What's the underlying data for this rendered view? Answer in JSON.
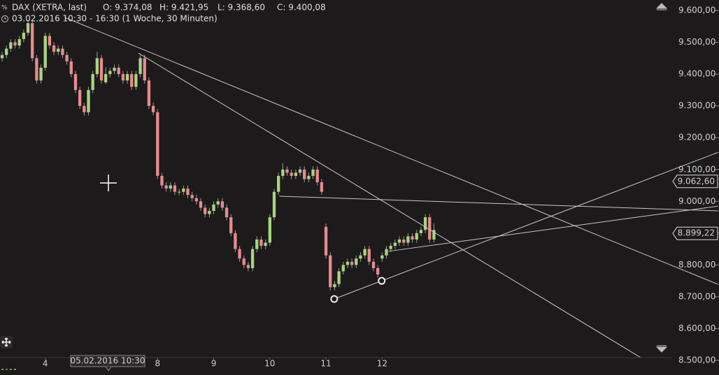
{
  "chart_data": {
    "type": "candlestick",
    "header": {
      "symbol": "DAX (XETRA, last)",
      "open": "O: 9.374,08",
      "high": "H: 9.421,95",
      "low": "L: 9.368,60",
      "close": "C: 9.400,08",
      "range": "03.02.2016 10:30 - 16:30 (1 Woche, 30 Minuten)"
    },
    "cursor_label": "05.02.2016 10:30",
    "up_color": "#a8d47e",
    "down_color": "#e98a8e",
    "line_color": "#c8c8c8",
    "xlim": [
      0,
      155
    ],
    "xticks": [
      {
        "value": 10,
        "label": "4"
      },
      {
        "value": 36,
        "label": "8"
      },
      {
        "value": 49,
        "label": "9"
      },
      {
        "value": 62,
        "label": "10"
      },
      {
        "value": 75,
        "label": "11"
      },
      {
        "value": 88,
        "label": "12"
      }
    ],
    "ylim": [
      8490,
      9624
    ],
    "yticks": [
      {
        "value": 9600,
        "label": "9.600,00"
      },
      {
        "value": 9500,
        "label": "9.500,00"
      },
      {
        "value": 9400,
        "label": "9.400,00"
      },
      {
        "value": 9300,
        "label": "9.300,00"
      },
      {
        "value": 9200,
        "label": "9.200,00"
      },
      {
        "value": 9100,
        "label": "9.100,00"
      },
      {
        "value": 9000,
        "label": "9.000,00"
      },
      {
        "value": 8900,
        "label": "8.900,00"
      },
      {
        "value": 8800,
        "label": "8.800,00"
      },
      {
        "value": 8700,
        "label": "8.700,00"
      },
      {
        "value": 8600,
        "label": "8.600,00"
      },
      {
        "value": 8500,
        "label": "8.500,00"
      }
    ],
    "price_markers": {
      "values": [
        9062.6,
        8899.22
      ],
      "value_labels": [
        "9.062,60",
        "8.899,22"
      ]
    },
    "ohlc": [
      [
        9450,
        9470,
        9440,
        9460
      ],
      [
        9460,
        9490,
        9450,
        9480
      ],
      [
        9480,
        9510,
        9470,
        9500
      ],
      [
        9500,
        9510,
        9480,
        9490
      ],
      [
        9490,
        9520,
        9480,
        9510
      ],
      [
        9510,
        9540,
        9500,
        9530
      ],
      [
        9530,
        9570,
        9520,
        9560
      ],
      [
        9560,
        9570,
        9440,
        9450
      ],
      [
        9450,
        9460,
        9370,
        9380
      ],
      [
        9380,
        9430,
        9370,
        9420
      ],
      [
        9420,
        9530,
        9410,
        9520
      ],
      [
        9520,
        9530,
        9480,
        9490
      ],
      [
        9490,
        9500,
        9460,
        9470
      ],
      [
        9470,
        9490,
        9460,
        9480
      ],
      [
        9480,
        9490,
        9450,
        9460
      ],
      [
        9460,
        9470,
        9430,
        9440
      ],
      [
        9440,
        9450,
        9390,
        9400
      ],
      [
        9400,
        9410,
        9340,
        9350
      ],
      [
        9350,
        9360,
        9290,
        9300
      ],
      [
        9300,
        9310,
        9270,
        9280
      ],
      [
        9280,
        9360,
        9270,
        9350
      ],
      [
        9350,
        9410,
        9340,
        9400
      ],
      [
        9400,
        9470,
        9390,
        9450
      ],
      [
        9450,
        9460,
        9370,
        9380
      ],
      [
        9374.08,
        9421.95,
        9368.6,
        9400.08
      ],
      [
        9400,
        9420,
        9390,
        9410
      ],
      [
        9410,
        9430,
        9400,
        9420
      ],
      [
        9420,
        9430,
        9390,
        9400
      ],
      [
        9400,
        9410,
        9370,
        9380
      ],
      [
        9380,
        9410,
        9370,
        9400
      ],
      [
        9400,
        9410,
        9350,
        9360
      ],
      [
        9360,
        9410,
        9350,
        9400
      ],
      [
        9400,
        9460,
        9390,
        9450
      ],
      [
        9450,
        9460,
        9370,
        9380
      ],
      [
        9380,
        9390,
        9290,
        9300
      ],
      [
        9300,
        9310,
        9270,
        9280
      ],
      [
        9280,
        9290,
        9070,
        9080
      ],
      [
        9080,
        9090,
        9040,
        9050
      ],
      [
        9050,
        9060,
        9030,
        9040
      ],
      [
        9040,
        9060,
        9030,
        9050
      ],
      [
        9050,
        9060,
        9020,
        9030
      ],
      [
        9030,
        9040,
        9020,
        9030
      ],
      [
        9030,
        9050,
        9020,
        9040
      ],
      [
        9040,
        9050,
        9010,
        9020
      ],
      [
        9020,
        9030,
        9000,
        9010
      ],
      [
        9010,
        9020,
        8990,
        9000
      ],
      [
        9000,
        9010,
        8970,
        8980
      ],
      [
        8980,
        8990,
        8950,
        8960
      ],
      [
        8960,
        8980,
        8950,
        8970
      ],
      [
        8970,
        9000,
        8960,
        8990
      ],
      [
        8990,
        9010,
        8980,
        9000
      ],
      [
        9000,
        9010,
        8970,
        8980
      ],
      [
        8980,
        8990,
        8940,
        8950
      ],
      [
        8950,
        8960,
        8890,
        8900
      ],
      [
        8900,
        8910,
        8840,
        8850
      ],
      [
        8850,
        8860,
        8810,
        8820
      ],
      [
        8820,
        8830,
        8790,
        8800
      ],
      [
        8800,
        8810,
        8780,
        8790
      ],
      [
        8790,
        8860,
        8780,
        8850
      ],
      [
        8850,
        8890,
        8840,
        8880
      ],
      [
        8880,
        8890,
        8850,
        8860
      ],
      [
        8860,
        8880,
        8850,
        8870
      ],
      [
        8870,
        8960,
        8860,
        8950
      ],
      [
        8950,
        9040,
        8940,
        9030
      ],
      [
        9030,
        9090,
        9020,
        9080
      ],
      [
        9080,
        9120,
        9070,
        9100
      ],
      [
        9100,
        9110,
        9080,
        9090
      ],
      [
        9090,
        9100,
        9070,
        9080
      ],
      [
        9080,
        9100,
        9070,
        9090
      ],
      [
        9090,
        9110,
        9080,
        9100
      ],
      [
        9100,
        9110,
        9060,
        9070
      ],
      [
        9070,
        9090,
        9060,
        9080
      ],
      [
        9080,
        9110,
        9070,
        9100
      ],
      [
        9100,
        9110,
        9050,
        9060
      ],
      [
        9060,
        9070,
        9020,
        9030
      ],
      [
        8920,
        8930,
        8820,
        8830
      ],
      [
        8830,
        8840,
        8720,
        8730
      ],
      [
        8730,
        8750,
        8720,
        8740
      ],
      [
        8740,
        8790,
        8730,
        8780
      ],
      [
        8780,
        8810,
        8770,
        8800
      ],
      [
        8800,
        8820,
        8790,
        8810
      ],
      [
        8810,
        8820,
        8790,
        8800
      ],
      [
        8800,
        8830,
        8790,
        8820
      ],
      [
        8820,
        8840,
        8810,
        8830
      ],
      [
        8830,
        8860,
        8820,
        8850
      ],
      [
        8850,
        8860,
        8800,
        8810
      ],
      [
        8810,
        8820,
        8780,
        8790
      ],
      [
        8790,
        8800,
        8760,
        8770
      ],
      [
        8820,
        8840,
        8810,
        8830
      ],
      [
        8830,
        8860,
        8820,
        8850
      ],
      [
        8850,
        8870,
        8840,
        8860
      ],
      [
        8860,
        8880,
        8850,
        8870
      ],
      [
        8870,
        8890,
        8860,
        8880
      ],
      [
        8880,
        8890,
        8860,
        8870
      ],
      [
        8870,
        8900,
        8860,
        8890
      ],
      [
        8890,
        8900,
        8870,
        8880
      ],
      [
        8880,
        8910,
        8870,
        8900
      ],
      [
        8900,
        8920,
        8890,
        8910
      ],
      [
        8910,
        8960,
        8900,
        8950
      ],
      [
        8950,
        8960,
        8870,
        8880
      ],
      [
        8880,
        8930,
        8870,
        8910
      ]
    ],
    "trendlines": [
      {
        "x": [
          14.5,
          165.8
        ],
        "y": [
          9578,
          8739
        ]
      },
      {
        "x": [
          31.6,
          153.2
        ],
        "y": [
          9466,
          8465
        ]
      },
      {
        "x": [
          64.2,
          165.8
        ],
        "y": [
          9016,
          8970
        ]
      },
      {
        "x": [
          76.9,
          165.8
        ],
        "y": [
          8693,
          9154
        ]
      },
      {
        "x": [
          89.5,
          165.8
        ],
        "y": [
          8843,
          8985
        ]
      }
    ],
    "anchor_points": {
      "x": [
        76.9,
        87.9
      ],
      "y": [
        8693,
        8750
      ]
    }
  }
}
